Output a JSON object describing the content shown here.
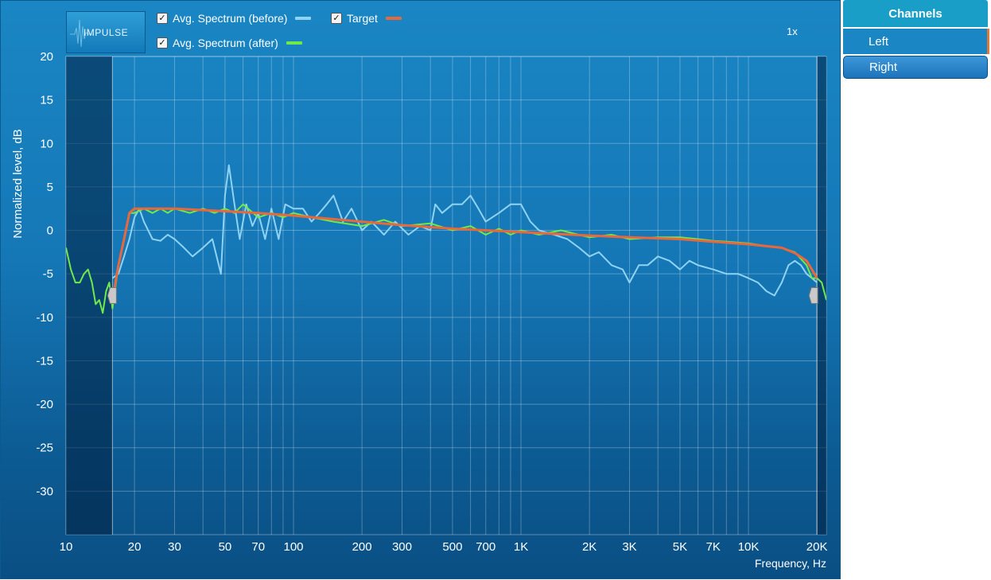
{
  "impulse_button": {
    "label": "IMPULSE"
  },
  "legend": [
    {
      "label": "Avg. Spectrum (before)",
      "checked": true,
      "color": "#8fd3f4"
    },
    {
      "label": "Target",
      "checked": true,
      "color": "#e8683c"
    },
    {
      "label": "Avg. Spectrum (after)",
      "checked": true,
      "color": "#6fea4a"
    }
  ],
  "zoom": "1x",
  "channels": {
    "header": "Channels",
    "items": [
      {
        "label": "Left",
        "selected": true
      },
      {
        "label": "Right",
        "selected": false
      }
    ]
  },
  "chart_data": {
    "type": "line",
    "xscale": "log",
    "xlim": [
      10,
      22000
    ],
    "ylim": [
      -35,
      20
    ],
    "xlabel": "Frequency, Hz",
    "ylabel": "Normalized level, dB",
    "grid": true,
    "legend_position": "top-left",
    "x_ticks": [
      {
        "v": 10,
        "label": "10"
      },
      {
        "v": 20,
        "label": "20"
      },
      {
        "v": 30,
        "label": "30"
      },
      {
        "v": 50,
        "label": "50"
      },
      {
        "v": 70,
        "label": "70"
      },
      {
        "v": 100,
        "label": "100"
      },
      {
        "v": 200,
        "label": "200"
      },
      {
        "v": 300,
        "label": "300"
      },
      {
        "v": 500,
        "label": "500"
      },
      {
        "v": 700,
        "label": "700"
      },
      {
        "v": 1000,
        "label": "1K"
      },
      {
        "v": 2000,
        "label": "2K"
      },
      {
        "v": 3000,
        "label": "3K"
      },
      {
        "v": 5000,
        "label": "5K"
      },
      {
        "v": 7000,
        "label": "7K"
      },
      {
        "v": 10000,
        "label": "10K"
      },
      {
        "v": 20000,
        "label": "20K"
      }
    ],
    "y_ticks": [
      20,
      15,
      10,
      5,
      0,
      -5,
      -10,
      -15,
      -20,
      -25,
      -30
    ],
    "target_range_hz": [
      16,
      20000
    ],
    "series": [
      {
        "name": "Avg. Spectrum (before)",
        "color": "#8fd3f4",
        "x": [
          16,
          17,
          18,
          19,
          20,
          21,
          22,
          24,
          26,
          28,
          30,
          33,
          36,
          40,
          44,
          48,
          50,
          52,
          55,
          58,
          62,
          66,
          70,
          75,
          80,
          86,
          92,
          100,
          110,
          120,
          130,
          140,
          150,
          165,
          180,
          200,
          220,
          250,
          280,
          320,
          360,
          400,
          420,
          450,
          500,
          550,
          600,
          650,
          700,
          800,
          900,
          1000,
          1100,
          1200,
          1400,
          1600,
          1800,
          2000,
          2200,
          2500,
          2800,
          3000,
          3300,
          3600,
          4000,
          4500,
          5000,
          5500,
          6000,
          7000,
          8000,
          9000,
          10000,
          11000,
          12000,
          13000,
          14000,
          15000,
          16000,
          17000,
          18000,
          19000,
          20000
        ],
        "y": [
          -5.5,
          -5,
          -3,
          -1,
          1.5,
          2.5,
          1,
          -1,
          -1.2,
          -0.5,
          -1,
          -2,
          -3,
          -2,
          -1,
          -5,
          4,
          7.5,
          3,
          -1,
          3,
          0.5,
          2,
          -1,
          2.5,
          -1,
          3,
          2.5,
          2.5,
          1,
          2,
          3,
          4,
          1,
          2.5,
          0,
          1,
          -0.5,
          1,
          -0.5,
          0.5,
          0,
          3,
          2,
          3,
          3,
          4,
          2.5,
          1,
          2,
          3,
          3,
          1,
          0,
          -0.5,
          -1,
          -2,
          -3,
          -2.5,
          -4,
          -4.5,
          -6,
          -4,
          -4,
          -3,
          -3.5,
          -4.5,
          -3.5,
          -4,
          -4.5,
          -5,
          -5,
          -5.5,
          -6,
          -7,
          -7.5,
          -6,
          -4,
          -3.5,
          -4,
          -5,
          -5.5,
          -6
        ]
      },
      {
        "name": "Target",
        "color": "#e8683c",
        "x": [
          16,
          17,
          18,
          19,
          20,
          30,
          50,
          70,
          100,
          200,
          300,
          500,
          700,
          1000,
          2000,
          3000,
          5000,
          7000,
          10000,
          14000,
          16000,
          18000,
          19000,
          20000
        ],
        "y": [
          -8,
          -4,
          -1,
          2,
          2.5,
          2.5,
          2.2,
          2,
          1.7,
          1,
          0.6,
          0.2,
          0,
          -0.2,
          -0.6,
          -0.8,
          -1,
          -1.3,
          -1.6,
          -2,
          -2.6,
          -3.5,
          -4.5,
          -5.5
        ]
      },
      {
        "name": "Avg. Spectrum (after)",
        "color": "#6fea4a",
        "x": [
          10,
          10.5,
          11,
          11.5,
          12,
          12.5,
          13,
          13.5,
          14,
          14.5,
          15,
          15.5,
          16,
          17,
          18,
          19,
          20,
          22,
          24,
          26,
          28,
          30,
          35,
          40,
          45,
          50,
          55,
          60,
          70,
          80,
          90,
          100,
          120,
          150,
          200,
          250,
          300,
          400,
          500,
          600,
          700,
          800,
          900,
          1000,
          1200,
          1500,
          2000,
          2500,
          3000,
          4000,
          5000,
          6000,
          7000,
          8000,
          10000,
          12000,
          14000,
          16000,
          18000,
          19000,
          20000,
          21000,
          22000
        ],
        "y": [
          -2,
          -4.5,
          -6,
          -6,
          -5,
          -4.5,
          -6,
          -8.5,
          -8,
          -9.5,
          -7,
          -6,
          -9,
          -4,
          -1,
          2,
          2,
          2.5,
          2,
          2.5,
          2,
          2.5,
          2,
          2.5,
          2,
          2.5,
          2,
          3,
          1.5,
          2,
          1.5,
          2,
          1.5,
          1,
          0.5,
          1.2,
          0.5,
          0.8,
          0,
          0.5,
          -0.5,
          0.2,
          -0.5,
          0,
          -0.5,
          0,
          -0.8,
          -0.5,
          -1,
          -0.8,
          -0.8,
          -1,
          -1.2,
          -1.3,
          -1.5,
          -1.8,
          -2,
          -2.5,
          -4,
          -5.5,
          -5.5,
          -6,
          -8
        ]
      }
    ]
  }
}
